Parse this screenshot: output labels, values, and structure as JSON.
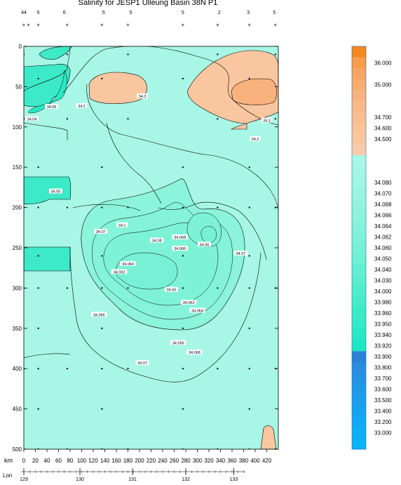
{
  "chart_data": {
    "type": "heatmap",
    "title": "Salinity for JESP1 Ulleung Basin 38N P1",
    "xlabel": "km",
    "x_ticks": [
      0,
      20,
      40,
      60,
      80,
      100,
      120,
      140,
      160,
      180,
      200,
      220,
      240,
      260,
      280,
      300,
      320,
      340,
      360,
      380,
      400,
      420
    ],
    "xlim": [
      0,
      440
    ],
    "lon_label": "Lon",
    "lon_ticks": [
      {
        "km": 0,
        "label": "129"
      },
      {
        "km": 97,
        "label": "130"
      },
      {
        "km": 188,
        "label": "131"
      },
      {
        "km": 280,
        "label": "132"
      },
      {
        "km": 363,
        "label": "133"
      }
    ],
    "ylim": [
      0,
      500
    ],
    "y_ticks": [
      0,
      50,
      100,
      150,
      200,
      250,
      300,
      350,
      400,
      450,
      500
    ],
    "station_codes": [
      {
        "km": 0,
        "text": "44"
      },
      {
        "km": 25,
        "text": "5"
      },
      {
        "km": 70,
        "text": "6"
      },
      {
        "km": 138,
        "text": "5"
      },
      {
        "km": 185,
        "text": "5"
      },
      {
        "km": 275,
        "text": "5"
      },
      {
        "km": 338,
        "text": "2"
      },
      {
        "km": 388,
        "text": "3"
      },
      {
        "km": 433,
        "text": "5"
      }
    ],
    "station_plus": [
      0,
      8,
      25,
      75,
      135,
      180,
      275,
      335,
      390,
      435
    ],
    "contour_labels": [
      {
        "km": 48,
        "depth": 75,
        "text": "34.05"
      },
      {
        "km": 100,
        "depth": 74,
        "text": "34.2"
      },
      {
        "km": 205,
        "depth": 62,
        "text": "34.3"
      },
      {
        "km": 14,
        "depth": 90,
        "text": "34.04"
      },
      {
        "km": 420,
        "depth": 92,
        "text": "34.3"
      },
      {
        "km": 400,
        "depth": 115,
        "text": "34.2"
      },
      {
        "km": 55,
        "depth": 180,
        "text": "34.05"
      },
      {
        "km": 170,
        "depth": 222,
        "text": "34.1"
      },
      {
        "km": 133,
        "depth": 230,
        "text": "34.07"
      },
      {
        "km": 230,
        "depth": 241,
        "text": "34.08"
      },
      {
        "km": 270,
        "depth": 237,
        "text": "34.068"
      },
      {
        "km": 270,
        "depth": 251,
        "text": "34.066"
      },
      {
        "km": 312,
        "depth": 246,
        "text": "34.06"
      },
      {
        "km": 375,
        "depth": 257,
        "text": "34.07"
      },
      {
        "km": 180,
        "depth": 270,
        "text": "34.064"
      },
      {
        "km": 165,
        "depth": 280,
        "text": "34.062"
      },
      {
        "km": 255,
        "depth": 302,
        "text": "34.06"
      },
      {
        "km": 285,
        "depth": 318,
        "text": "34.062"
      },
      {
        "km": 300,
        "depth": 328,
        "text": "34.064"
      },
      {
        "km": 130,
        "depth": 333,
        "text": "34.066"
      },
      {
        "km": 267,
        "depth": 368,
        "text": "34.066"
      },
      {
        "km": 295,
        "depth": 380,
        "text": "34.068"
      },
      {
        "km": 205,
        "depth": 393,
        "text": "34.07"
      }
    ],
    "colorbar": [
      {
        "label": "",
        "color": "#f7871f"
      },
      {
        "label": "36.000",
        "color": "#f99b48"
      },
      {
        "label": "",
        "color": "#f9a363"
      },
      {
        "label": "35.000",
        "color": "#f9ac6f"
      },
      {
        "label": "",
        "color": "#f9b27d"
      },
      {
        "label": "",
        "color": "#f9b887"
      },
      {
        "label": "34.700",
        "color": "#f9bd8f"
      },
      {
        "label": "34.600",
        "color": "#f9c297"
      },
      {
        "label": "34.500",
        "color": "#f9c6a0"
      },
      {
        "label": "",
        "color": "#f9cbaa"
      },
      {
        "label": "",
        "color": "#a8f6e5"
      },
      {
        "label": "",
        "color": "#a4f6e3"
      },
      {
        "label": "34.080",
        "color": "#9ff6e1"
      },
      {
        "label": "34.070",
        "color": "#99f5df"
      },
      {
        "label": "34.068",
        "color": "#92f4dd"
      },
      {
        "label": "34.066",
        "color": "#8bf4db"
      },
      {
        "label": "34.064",
        "color": "#84f3d9"
      },
      {
        "label": "34.062",
        "color": "#7ef2d7"
      },
      {
        "label": "34.060",
        "color": "#76f1d5"
      },
      {
        "label": "34.050",
        "color": "#6ef0d3"
      },
      {
        "label": "34.040",
        "color": "#64efd1"
      },
      {
        "label": "34.030",
        "color": "#5aeecf"
      },
      {
        "label": "34.000",
        "color": "#50edcd"
      },
      {
        "label": "33.980",
        "color": "#46ebcb"
      },
      {
        "label": "33.960",
        "color": "#3ceac8"
      },
      {
        "label": "33.950",
        "color": "#33e9c6"
      },
      {
        "label": "33.940",
        "color": "#2ae8c4"
      },
      {
        "label": "33.920",
        "color": "#20e6c2"
      },
      {
        "label": "33.900",
        "color": "#2b83d8"
      },
      {
        "label": "33.800",
        "color": "#2a8ddf"
      },
      {
        "label": "33.700",
        "color": "#2593e3"
      },
      {
        "label": "33.600",
        "color": "#2099e8"
      },
      {
        "label": "33.500",
        "color": "#1c9eec"
      },
      {
        "label": "33.400",
        "color": "#18a3f0"
      },
      {
        "label": "33.200",
        "color": "#13a8f3"
      },
      {
        "label": "33.000",
        "color": "#0faef6"
      },
      {
        "label": "",
        "color": "#0cb3f8"
      }
    ],
    "colors": {
      "background_field": "#a8f6e5",
      "fresh_core": "#3ce9c8",
      "mid_core": "#7ef2d7",
      "saline": "#f9c6a0",
      "saline_strong": "#f9b27d"
    }
  }
}
